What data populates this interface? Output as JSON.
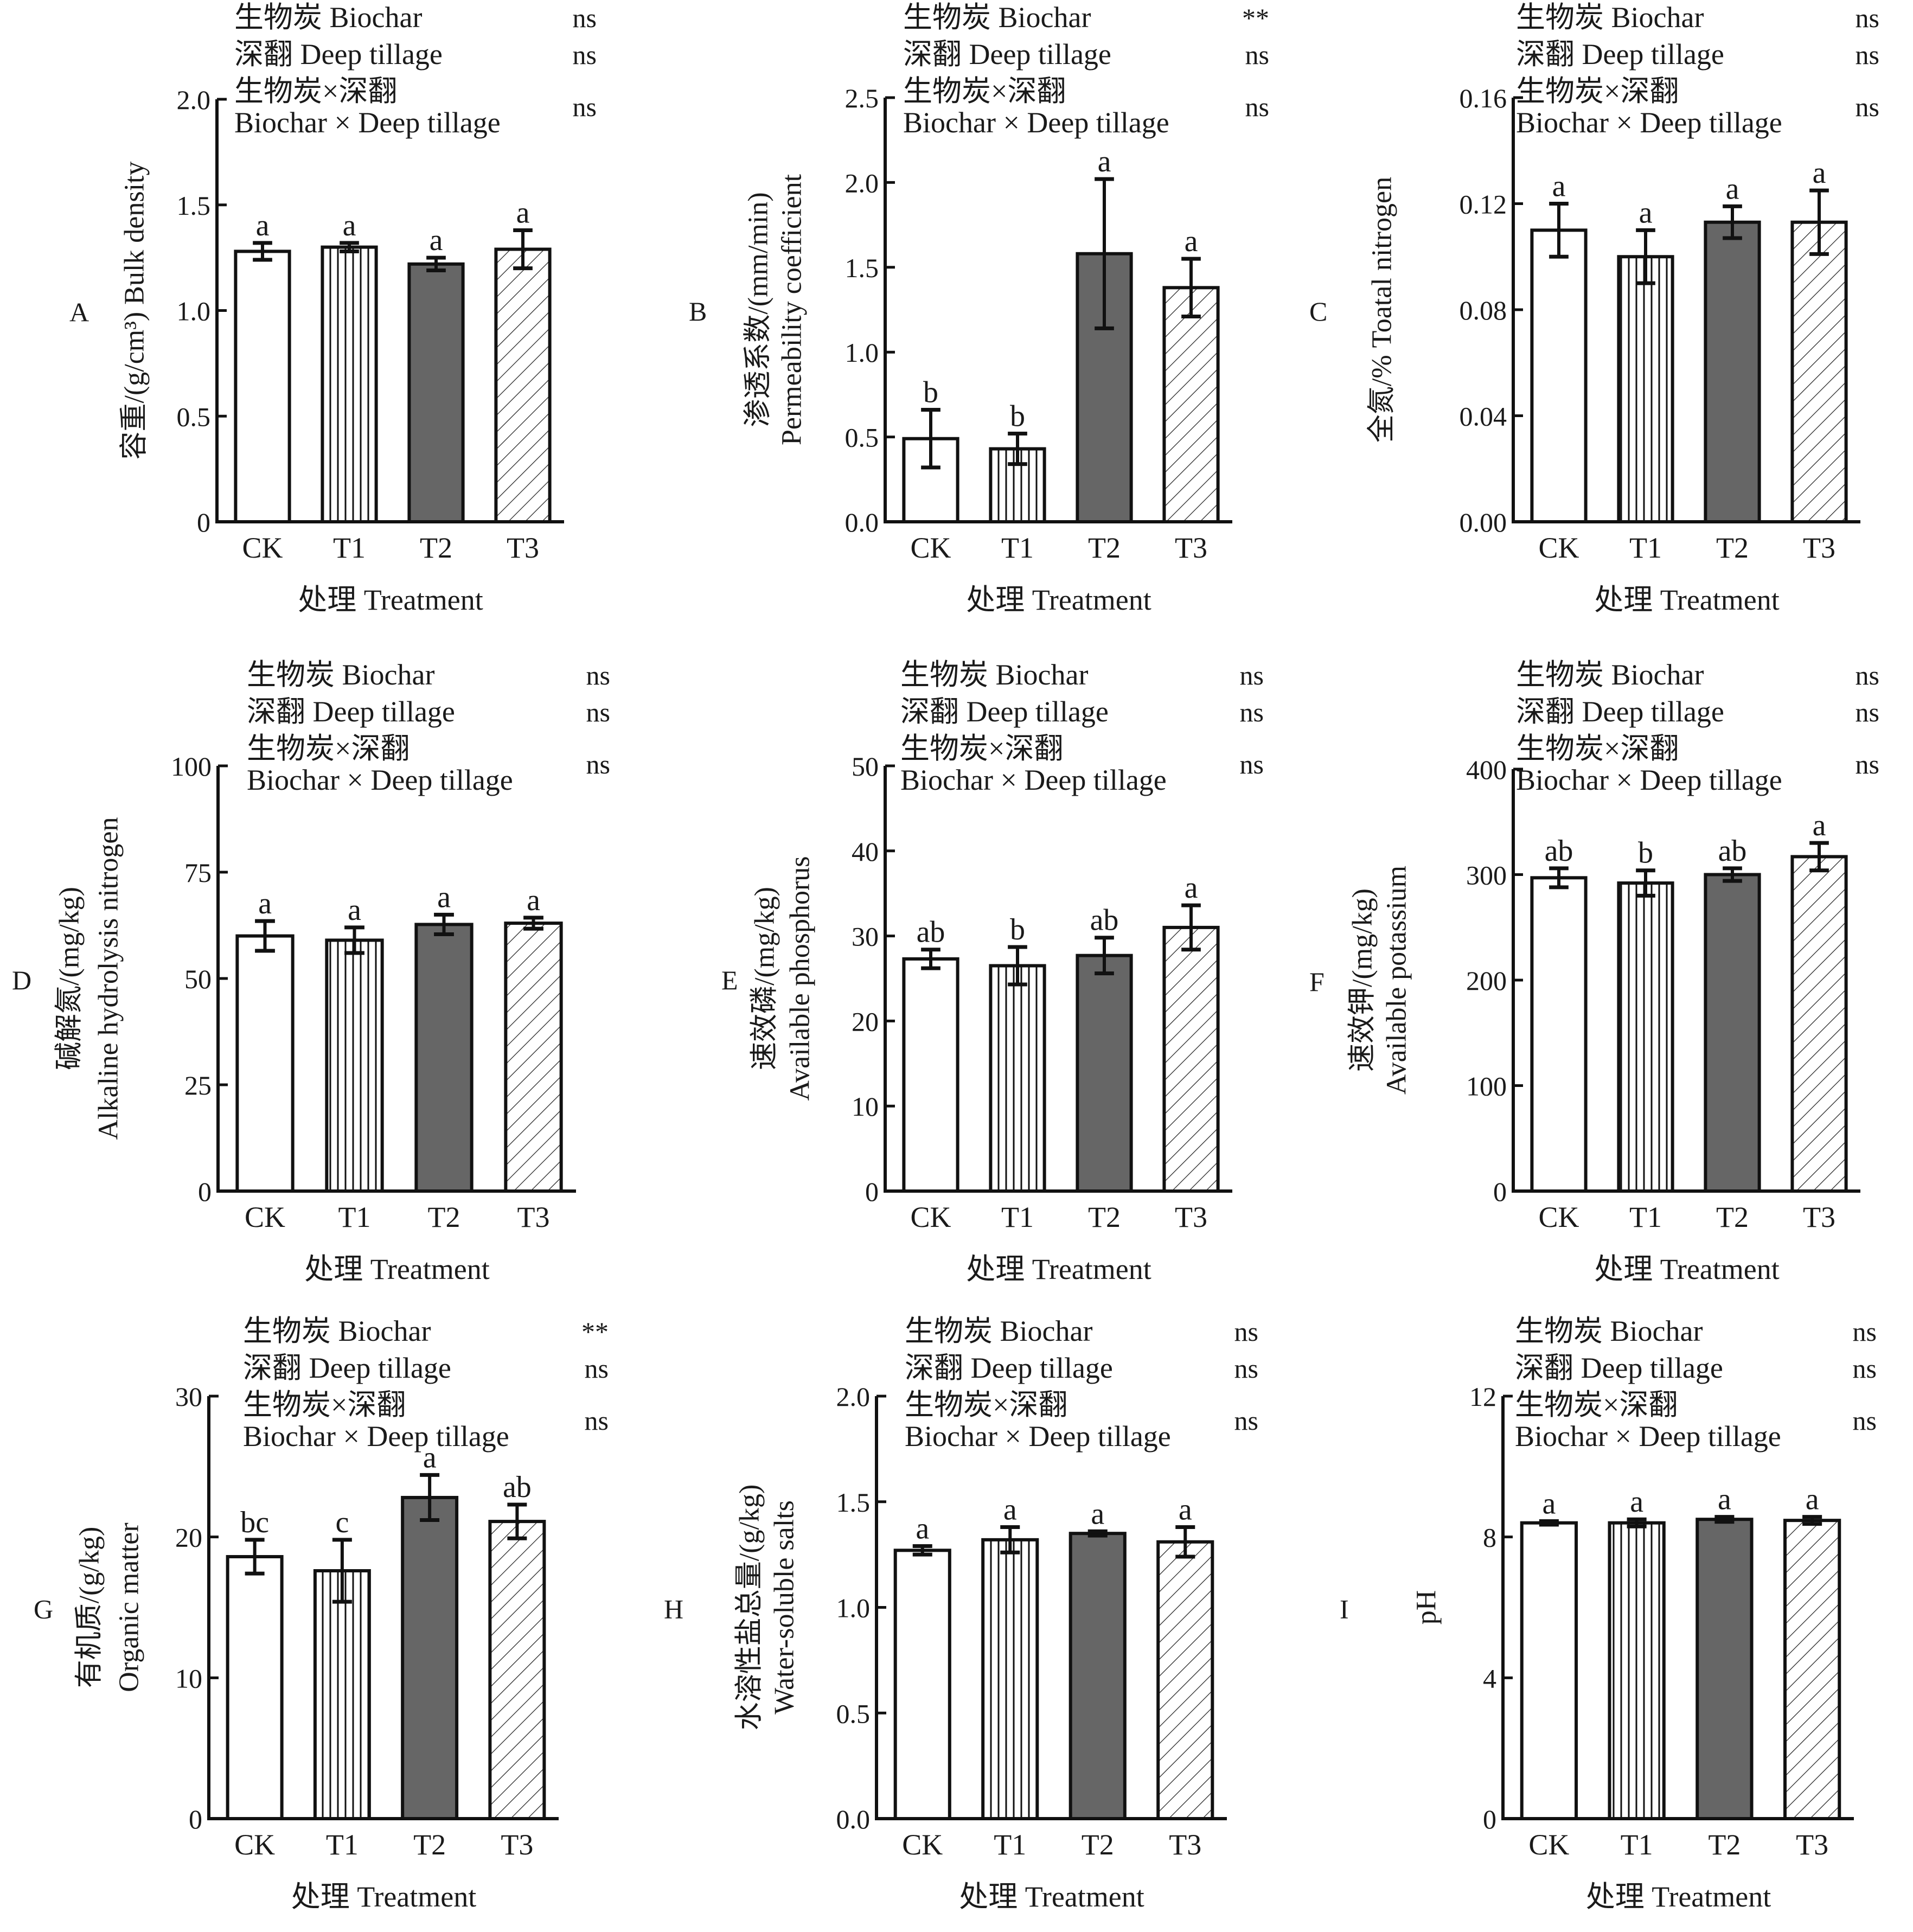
{
  "chart_data": [
    {
      "panel": "A",
      "type": "bar",
      "categories": [
        "CK",
        "T1",
        "T2",
        "T3"
      ],
      "values": [
        1.28,
        1.3,
        1.22,
        1.29
      ],
      "errors": [
        0.04,
        0.02,
        0.03,
        0.09
      ],
      "letters": [
        "a",
        "a",
        "a",
        "a"
      ],
      "ylim": [
        0,
        2.0
      ],
      "yticks": [
        0,
        0.5,
        1.0,
        1.5,
        2.0
      ],
      "yticklabels": [
        "0",
        "0.5",
        "1.0",
        "1.5",
        "2.0"
      ],
      "ylabel_lines": [
        "容重/(g/cm³) Bulk density"
      ],
      "xlabel": "处理 Treatment",
      "anova": [
        {
          "label": "生物炭 Biochar",
          "sig": "ns"
        },
        {
          "label": "深翻 Deep tillage",
          "sig": "ns"
        },
        {
          "label": "生物炭×深翻",
          "label2": "Biochar × Deep tillage",
          "sig": "ns"
        }
      ]
    },
    {
      "panel": "B",
      "type": "bar",
      "categories": [
        "CK",
        "T1",
        "T2",
        "T3"
      ],
      "values": [
        0.49,
        0.43,
        1.58,
        1.38
      ],
      "errors": [
        0.17,
        0.09,
        0.44,
        0.17
      ],
      "letters": [
        "b",
        "b",
        "a",
        "a"
      ],
      "ylim": [
        0,
        2.5
      ],
      "yticks": [
        0,
        0.5,
        1.0,
        1.5,
        2.0,
        2.5
      ],
      "yticklabels": [
        "0.0",
        "0.5",
        "1.0",
        "1.5",
        "2.0",
        "2.5"
      ],
      "ylabel_lines": [
        "渗透系数/(mm/min)",
        "Permeability coefficient"
      ],
      "xlabel": "处理 Treatment",
      "anova": [
        {
          "label": "生物炭 Biochar",
          "sig": "**"
        },
        {
          "label": "深翻 Deep tillage",
          "sig": "ns"
        },
        {
          "label": "生物炭×深翻",
          "label2": "Biochar × Deep tillage",
          "sig": "ns"
        }
      ]
    },
    {
      "panel": "C",
      "type": "bar",
      "categories": [
        "CK",
        "T1",
        "T2",
        "T3"
      ],
      "values": [
        0.11,
        0.1,
        0.113,
        0.113
      ],
      "errors": [
        0.01,
        0.01,
        0.006,
        0.012
      ],
      "letters": [
        "a",
        "a",
        "a",
        "a"
      ],
      "ylim": [
        0,
        0.16
      ],
      "yticks": [
        0,
        0.04,
        0.08,
        0.12,
        0.16
      ],
      "yticklabels": [
        "0.00",
        "0.04",
        "0.08",
        "0.12",
        "0.16"
      ],
      "ylabel_lines": [
        "全氮/% Toatal nitrogen"
      ],
      "xlabel": "处理 Treatment",
      "anova": [
        {
          "label": "生物炭 Biochar",
          "sig": "ns"
        },
        {
          "label": "深翻 Deep tillage",
          "sig": "ns"
        },
        {
          "label": "生物炭×深翻",
          "label2": "Biochar × Deep tillage",
          "sig": "ns"
        }
      ]
    },
    {
      "panel": "D",
      "type": "bar",
      "categories": [
        "CK",
        "T1",
        "T2",
        "T3"
      ],
      "values": [
        60.0,
        59.0,
        62.7,
        63.0
      ],
      "errors": [
        3.5,
        3.0,
        2.3,
        1.3
      ],
      "letters": [
        "a",
        "a",
        "a",
        "a"
      ],
      "ylim": [
        0,
        100
      ],
      "yticks": [
        0,
        25,
        50,
        75,
        100
      ],
      "yticklabels": [
        "0",
        "25",
        "50",
        "75",
        "100"
      ],
      "ylabel_lines": [
        "碱解氮/(mg/kg)",
        "Alkaline hydrolysis nitrogen"
      ],
      "xlabel": "处理 Treatment",
      "anova": [
        {
          "label": "生物炭 Biochar",
          "sig": "ns"
        },
        {
          "label": "深翻 Deep tillage",
          "sig": "ns"
        },
        {
          "label": "生物炭×深翻",
          "label2": "Biochar × Deep tillage",
          "sig": "ns"
        }
      ]
    },
    {
      "panel": "E",
      "type": "bar",
      "categories": [
        "CK",
        "T1",
        "T2",
        "T3"
      ],
      "values": [
        27.3,
        26.5,
        27.7,
        31.0
      ],
      "errors": [
        1.1,
        2.2,
        2.1,
        2.6
      ],
      "letters": [
        "ab",
        "b",
        "ab",
        "a"
      ],
      "ylim": [
        0,
        50
      ],
      "yticks": [
        0,
        10,
        20,
        30,
        40,
        50
      ],
      "yticklabels": [
        "0",
        "10",
        "20",
        "30",
        "40",
        "50"
      ],
      "ylabel_lines": [
        "速效磷/(mg/kg)",
        "Available phosphorus"
      ],
      "xlabel": "处理 Treatment",
      "anova": [
        {
          "label": "生物炭 Biochar",
          "sig": "ns"
        },
        {
          "label": "深翻 Deep tillage",
          "sig": "ns"
        },
        {
          "label": "生物炭×深翻",
          "label2": "Biochar × Deep tillage",
          "sig": "ns"
        }
      ]
    },
    {
      "panel": "F",
      "type": "bar",
      "categories": [
        "CK",
        "T1",
        "T2",
        "T3"
      ],
      "values": [
        297,
        292,
        300,
        317
      ],
      "errors": [
        9,
        12,
        6,
        13
      ],
      "letters": [
        "ab",
        "b",
        "ab",
        "a"
      ],
      "ylim": [
        0,
        400
      ],
      "yticks": [
        0,
        100,
        200,
        300,
        400
      ],
      "yticklabels": [
        "0",
        "100",
        "200",
        "300",
        "400"
      ],
      "ylabel_lines": [
        "速效钾/(mg/kg)",
        "Available potassium"
      ],
      "xlabel": "处理 Treatment",
      "anova": [
        {
          "label": "生物炭 Biochar",
          "sig": "ns"
        },
        {
          "label": "深翻 Deep tillage",
          "sig": "ns"
        },
        {
          "label": "生物炭×深翻",
          "label2": "Biochar × Deep tillage",
          "sig": "ns"
        }
      ]
    },
    {
      "panel": "G",
      "type": "bar",
      "categories": [
        "CK",
        "T1",
        "T2",
        "T3"
      ],
      "values": [
        18.6,
        17.6,
        22.8,
        21.1
      ],
      "errors": [
        1.2,
        2.2,
        1.6,
        1.2
      ],
      "letters": [
        "bc",
        "c",
        "a",
        "ab"
      ],
      "ylim": [
        0,
        30
      ],
      "yticks": [
        0,
        10,
        20,
        30
      ],
      "yticklabels": [
        "0",
        "10",
        "20",
        "30"
      ],
      "ylabel_lines": [
        "有机质/(g/kg)",
        "Organic matter"
      ],
      "xlabel": "处理  Treatment",
      "anova": [
        {
          "label": "生物炭 Biochar",
          "sig": "**"
        },
        {
          "label": "深翻 Deep tillage",
          "sig": "ns"
        },
        {
          "label": "生物炭×深翻",
          "label2": "Biochar × Deep tillage",
          "sig": "ns"
        }
      ]
    },
    {
      "panel": "H",
      "type": "bar",
      "categories": [
        "CK",
        "T1",
        "T2",
        "T3"
      ],
      "values": [
        1.27,
        1.32,
        1.35,
        1.31
      ],
      "errors": [
        0.02,
        0.06,
        0.01,
        0.07
      ],
      "letters": [
        "a",
        "a",
        "a",
        "a"
      ],
      "ylim": [
        0,
        2.0
      ],
      "yticks": [
        0,
        0.5,
        1.0,
        1.5,
        2.0
      ],
      "yticklabels": [
        "0.0",
        "0.5",
        "1.0",
        "1.5",
        "2.0"
      ],
      "ylabel_lines": [
        "水溶性盐总量/(g/kg)",
        "Water-soluble salts"
      ],
      "xlabel": "处理  Treatment",
      "anova": [
        {
          "label": "生物炭 Biochar",
          "sig": "ns"
        },
        {
          "label": "深翻 Deep tillage",
          "sig": "ns"
        },
        {
          "label": "生物炭×深翻",
          "label2": "Biochar × Deep tillage",
          "sig": "ns"
        }
      ]
    },
    {
      "panel": "I",
      "type": "bar",
      "categories": [
        "CK",
        "T1",
        "T2",
        "T3"
      ],
      "values": [
        8.4,
        8.4,
        8.5,
        8.47
      ],
      "errors": [
        0.05,
        0.1,
        0.07,
        0.1
      ],
      "letters": [
        "a",
        "a",
        "a",
        "a"
      ],
      "ylim": [
        0,
        12
      ],
      "yticks": [
        0,
        4,
        8,
        12
      ],
      "yticklabels": [
        "0",
        "4",
        "8",
        "12"
      ],
      "ylabel_lines": [
        "pH"
      ],
      "xlabel": "处理  Treatment",
      "anova": [
        {
          "label": "生物炭 Biochar",
          "sig": "ns"
        },
        {
          "label": "深翻 Deep tillage",
          "sig": "ns"
        },
        {
          "label": "生物炭×深翻",
          "label2": "Biochar × Deep tillage",
          "sig": "ns"
        }
      ]
    }
  ],
  "legend_treatments": [
    {
      "name": "CK",
      "fill": "white"
    },
    {
      "name": "T1",
      "fill": "vertical-lines"
    },
    {
      "name": "T2",
      "fill": "#666666"
    },
    {
      "name": "T3",
      "fill": "diagonal-hatch"
    }
  ],
  "colors": {
    "axis": "#111111",
    "text": "#1a1a1a",
    "dark_bar": "#666666",
    "background": "#ffffff"
  }
}
